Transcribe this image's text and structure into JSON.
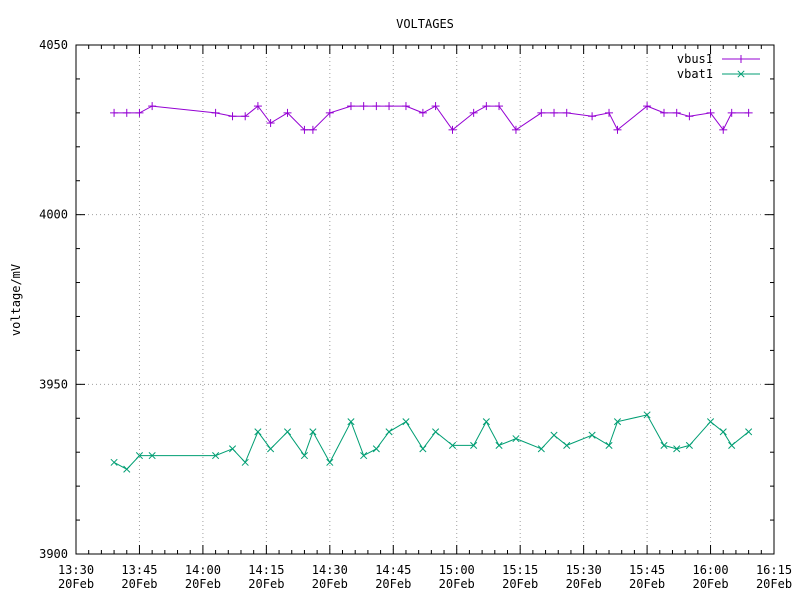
{
  "chart_data": {
    "type": "line",
    "title": "VOLTAGES",
    "xlabel": "",
    "ylabel": "voltage/mV",
    "xlim": [
      "13:30",
      "16:15"
    ],
    "ylim": [
      3900,
      4050
    ],
    "grid": true,
    "legend": "top-right",
    "x_ticks": [
      {
        "value": "13:30",
        "label": [
          "13:30",
          "20Feb"
        ]
      },
      {
        "value": "13:45",
        "label": [
          "13:45",
          "20Feb"
        ]
      },
      {
        "value": "14:00",
        "label": [
          "14:00",
          "20Feb"
        ]
      },
      {
        "value": "14:15",
        "label": [
          "14:15",
          "20Feb"
        ]
      },
      {
        "value": "14:30",
        "label": [
          "14:30",
          "20Feb"
        ]
      },
      {
        "value": "14:45",
        "label": [
          "14:45",
          "20Feb"
        ]
      },
      {
        "value": "15:00",
        "label": [
          "15:00",
          "20Feb"
        ]
      },
      {
        "value": "15:15",
        "label": [
          "15:15",
          "20Feb"
        ]
      },
      {
        "value": "15:30",
        "label": [
          "15:30",
          "20Feb"
        ]
      },
      {
        "value": "15:45",
        "label": [
          "15:45",
          "20Feb"
        ]
      },
      {
        "value": "16:00",
        "label": [
          "16:00",
          "20Feb"
        ]
      },
      {
        "value": "16:15",
        "label": [
          "16:15",
          "20Feb"
        ]
      }
    ],
    "y_ticks": [
      3900,
      3950,
      4000,
      4050
    ],
    "series": [
      {
        "name": "vbus1",
        "color": "#9400d3",
        "marker": "plus",
        "x": [
          "13:39",
          "13:42",
          "13:45",
          "13:48",
          "14:03",
          "14:07",
          "14:10",
          "14:13",
          "14:16",
          "14:20",
          "14:24",
          "14:26",
          "14:30",
          "14:35",
          "14:38",
          "14:41",
          "14:44",
          "14:48",
          "14:52",
          "14:55",
          "14:59",
          "15:04",
          "15:07",
          "15:10",
          "15:14",
          "15:20",
          "15:23",
          "15:26",
          "15:32",
          "15:36",
          "15:38",
          "15:45",
          "15:49",
          "15:52",
          "15:55",
          "16:00",
          "16:03",
          "16:05",
          "16:09"
        ],
        "values": [
          4030,
          4030,
          4030,
          4032,
          4030,
          4029,
          4029,
          4032,
          4027,
          4030,
          4025,
          4025,
          4030,
          4032,
          4032,
          4032,
          4032,
          4032,
          4030,
          4032,
          4025,
          4030,
          4032,
          4032,
          4025,
          4030,
          4030,
          4030,
          4029,
          4030,
          4025,
          4032,
          4030,
          4030,
          4029,
          4030,
          4025,
          4030,
          4030
        ]
      },
      {
        "name": "vbat1",
        "color": "#009e73",
        "marker": "cross",
        "x": [
          "13:39",
          "13:42",
          "13:45",
          "13:48",
          "14:03",
          "14:07",
          "14:10",
          "14:13",
          "14:16",
          "14:20",
          "14:24",
          "14:26",
          "14:30",
          "14:35",
          "14:38",
          "14:41",
          "14:44",
          "14:48",
          "14:52",
          "14:55",
          "14:59",
          "15:04",
          "15:07",
          "15:10",
          "15:14",
          "15:20",
          "15:23",
          "15:26",
          "15:32",
          "15:36",
          "15:38",
          "15:45",
          "15:49",
          "15:52",
          "15:55",
          "16:00",
          "16:03",
          "16:05",
          "16:09"
        ],
        "values": [
          3927,
          3925,
          3929,
          3929,
          3929,
          3931,
          3927,
          3936,
          3931,
          3936,
          3929,
          3936,
          3927,
          3939,
          3929,
          3931,
          3936,
          3939,
          3931,
          3936,
          3932,
          3932,
          3939,
          3932,
          3934,
          3931,
          3935,
          3932,
          3935,
          3932,
          3939,
          3941,
          3932,
          3931,
          3932,
          3939,
          3936,
          3932,
          3936
        ]
      }
    ]
  }
}
